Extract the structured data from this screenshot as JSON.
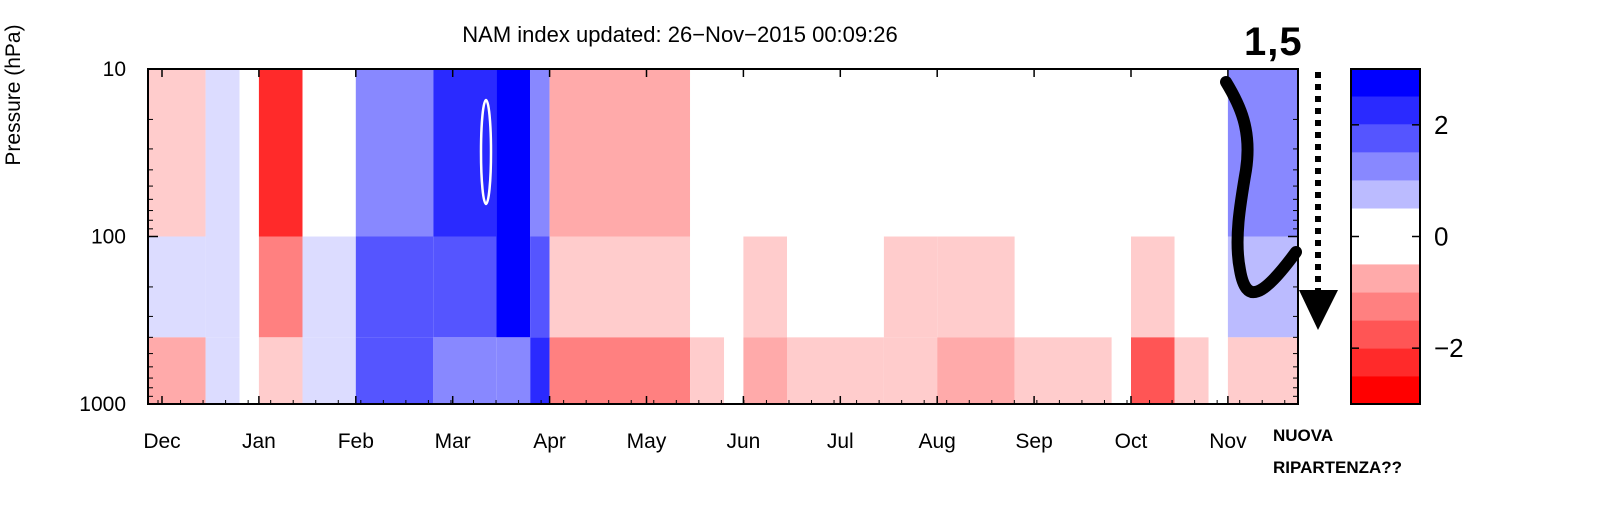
{
  "chart_data": {
    "type": "heatmap",
    "title": "NAM index updated: 26−Nov−2015 00:09:26",
    "ylabel": "Pressure (hPa)",
    "xlabel": "",
    "y_scale": "log",
    "ylim": [
      1000,
      10
    ],
    "y_ticks": [
      "10",
      "100",
      "1000"
    ],
    "x_ticks": [
      "Dec",
      "Jan",
      "Feb",
      "Mar",
      "Apr",
      "May",
      "Jun",
      "Jul",
      "Aug",
      "Sep",
      "Oct",
      "Nov"
    ],
    "colorbar": {
      "range": [
        -3,
        3
      ],
      "step": 0.5,
      "ticks": [
        "2",
        "0",
        "−2"
      ],
      "colors": {
        "3": "#0000ff",
        "2.5": "#2a2aff",
        "2": "#5555ff",
        "1.5": "#8888ff",
        "1": "#bbbbff",
        "0.5": "#dcdcff",
        "0": "#ffffff",
        "-0.5": "#ffcccc",
        "-1": "#ffaaaa",
        "-1.5": "#ff8080",
        "-2": "#ff5555",
        "-2.5": "#ff2a2a",
        "-3": "#ff0000"
      }
    },
    "bands": [
      {
        "start": "late Nov",
        "end": "mid Dec",
        "nam": [
          -0.5,
          0.5,
          -1
        ]
      },
      {
        "start": "mid Dec",
        "end": "late Dec",
        "nam": [
          0.5,
          0.5,
          0.5
        ]
      },
      {
        "start": "early Jan",
        "end": "mid Jan",
        "nam": [
          -2.5,
          -1.5,
          -0.5
        ]
      },
      {
        "start": "mid Jan",
        "end": "early Feb",
        "nam": [
          0,
          0.5,
          0.5
        ]
      },
      {
        "start": "early Feb",
        "end": "late Feb",
        "nam": [
          1.5,
          2,
          2
        ]
      },
      {
        "start": "late Feb",
        "end": "mid Mar",
        "nam": [
          2.5,
          2,
          1.5
        ]
      },
      {
        "start": "mid Mar",
        "end": "late Mar",
        "nam": [
          3,
          3,
          1.5
        ]
      },
      {
        "start": "late Mar",
        "end": "early Apr",
        "nam": [
          1.5,
          2,
          2.5
        ]
      },
      {
        "start": "early Apr",
        "end": "mid May",
        "nam": [
          -1,
          -0.5,
          -1.5
        ]
      },
      {
        "start": "mid May",
        "end": "late May",
        "nam": [
          0,
          0,
          -0.5
        ]
      },
      {
        "start": "early Jun",
        "end": "mid Jun",
        "nam": [
          0,
          -0.5,
          -1
        ]
      },
      {
        "start": "mid Jun",
        "end": "mid Jul",
        "nam": [
          0,
          0,
          -0.5
        ]
      },
      {
        "start": "mid Jul",
        "end": "early Aug",
        "nam": [
          0,
          -0.5,
          -0.5
        ]
      },
      {
        "start": "early Aug",
        "end": "late Aug",
        "nam": [
          0,
          -0.5,
          -1
        ]
      },
      {
        "start": "late Aug",
        "end": "late Sep",
        "nam": [
          0,
          0,
          -0.5
        ]
      },
      {
        "start": "early Oct",
        "end": "mid Oct",
        "nam": [
          0,
          -0.5,
          -2
        ]
      },
      {
        "start": "mid Oct",
        "end": "late Oct",
        "nam": [
          0,
          0,
          -0.5
        ]
      },
      {
        "start": "early Nov",
        "end": "late Nov",
        "nam": [
          1.5,
          1,
          -0.5
        ]
      }
    ]
  },
  "annotations": {
    "value_label": "1,5",
    "question_label_line1": "NUOVA",
    "question_label_line2": "RIPARTENZA??"
  }
}
